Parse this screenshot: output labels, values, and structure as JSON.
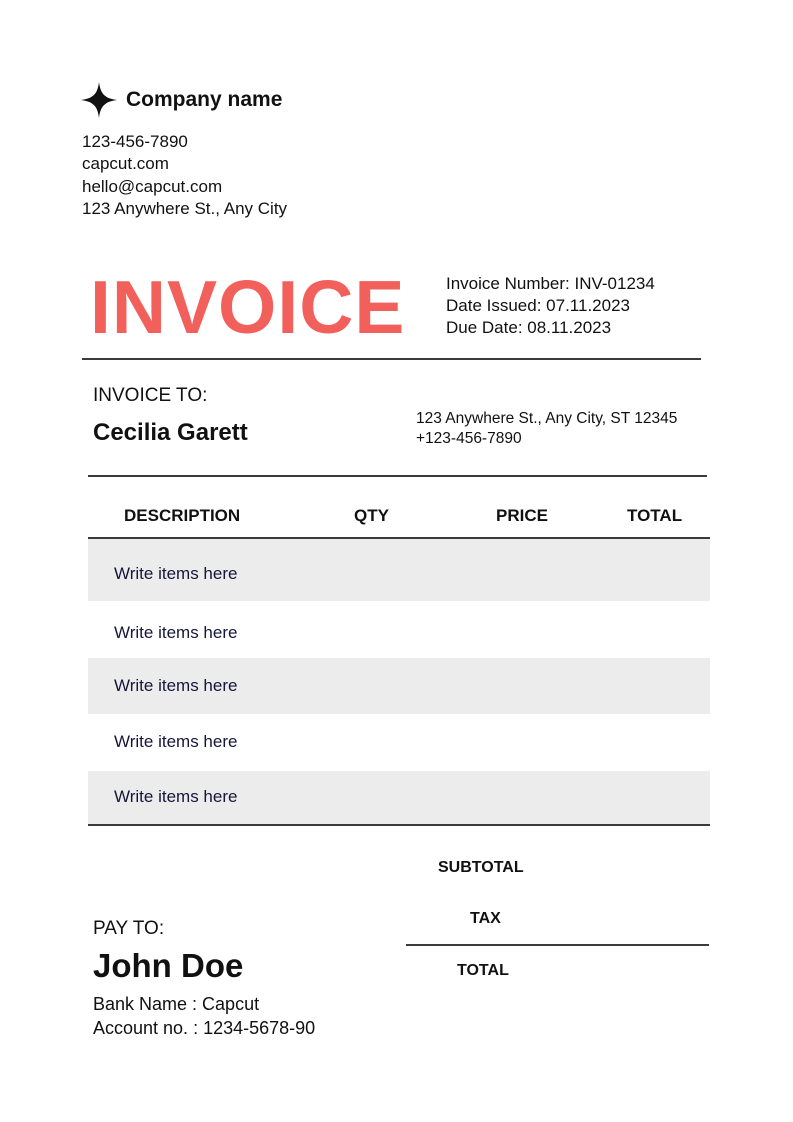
{
  "company": {
    "logo_icon": "four-point-star-icon",
    "name": "Company name",
    "phone": "123-456-7890",
    "website": "capcut.com",
    "email": "hello@capcut.com",
    "address": "123 Anywhere St., Any City"
  },
  "invoice": {
    "title": "INVOICE",
    "title_color": "#f2605c",
    "number": "Invoice Number: INV-01234",
    "date_issued": "Date Issued: 07.11.2023",
    "due_date": "Due Date: 08.11.2023"
  },
  "bill_to": {
    "label": "INVOICE TO:",
    "name": "Cecilia Garett",
    "address": "123 Anywhere St., Any City, ST 12345",
    "phone": "+123-456-7890"
  },
  "table": {
    "headers": [
      "DESCRIPTION",
      "QTY",
      "PRICE",
      "TOTAL"
    ],
    "rows": [
      "Write items here",
      "Write items here",
      "Write items here",
      "Write items here",
      "Write items here"
    ]
  },
  "totals": {
    "subtotal": "SUBTOTAL",
    "tax": "TAX",
    "total": "TOTAL"
  },
  "pay_to": {
    "label": "PAY TO:",
    "name": "John Doe",
    "bank": "Bank Name : Capcut",
    "account": "Account no. : 1234-5678-90"
  }
}
